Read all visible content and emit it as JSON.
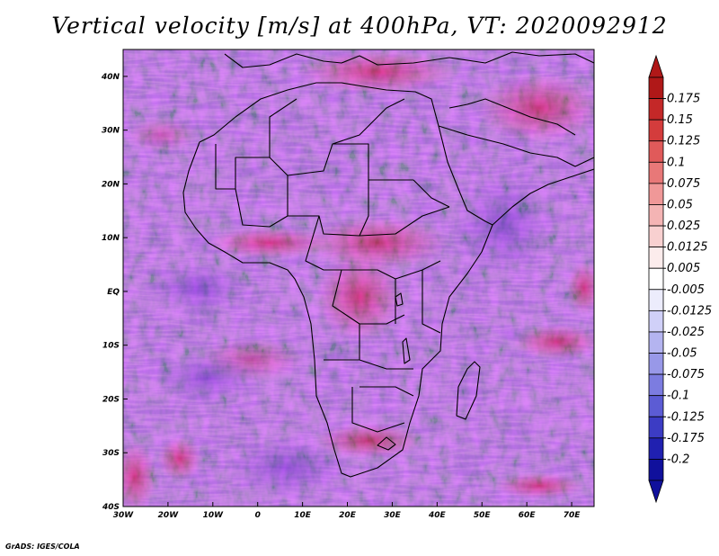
{
  "title": "Vertical velocity [m/s] at 400hPa, VT: 2020092912",
  "credit": "GrADS: IGES/COLA",
  "map": {
    "lon_range": [
      -30,
      75
    ],
    "lat_range": [
      -40,
      45
    ],
    "lon_ticks": [
      "30W",
      "20W",
      "10W",
      "0",
      "10E",
      "20E",
      "30E",
      "40E",
      "50E",
      "60E",
      "70E"
    ],
    "lon_values": [
      -30,
      -20,
      -10,
      0,
      10,
      20,
      30,
      40,
      50,
      60,
      70
    ],
    "lat_ticks": [
      "40N",
      "30N",
      "20N",
      "10N",
      "EQ",
      "10S",
      "20S",
      "30S",
      "40S"
    ],
    "lat_values": [
      40,
      30,
      20,
      10,
      0,
      -10,
      -20,
      -30,
      -40
    ]
  },
  "colorbar": {
    "labels": [
      "0.175",
      "0.15",
      "0.125",
      "0.1",
      "0.075",
      "0.05",
      "0.025",
      "0.0125",
      "0.005",
      "-0.005",
      "-0.0125",
      "-0.025",
      "-0.05",
      "-0.075",
      "-0.1",
      "-0.125",
      "-0.175",
      "-0.2"
    ],
    "colors": [
      "#b01818",
      "#c42828",
      "#d43c3c",
      "#e05a5a",
      "#e87878",
      "#f09898",
      "#f4b4b4",
      "#f8d0d0",
      "#fcecec",
      "#ffffff",
      "#ececfc",
      "#d0d0f8",
      "#b4b4f0",
      "#9898e8",
      "#7c7ce0",
      "#5c5cd4",
      "#3c3cc4",
      "#2020b0",
      "#10109c"
    ]
  },
  "chart_data": {
    "type": "heatmap",
    "title": "Vertical velocity [m/s] at 400hPa, VT: 2020092912",
    "variable": "Vertical velocity",
    "units": "m/s",
    "level": "400hPa",
    "valid_time": "2020092912",
    "x_range": [
      -30,
      75
    ],
    "y_range": [
      -40,
      45
    ],
    "contour_levels": [
      -0.2,
      -0.175,
      -0.125,
      -0.1,
      -0.075,
      -0.05,
      -0.025,
      -0.0125,
      -0.005,
      0.005,
      0.0125,
      0.025,
      0.05,
      0.075,
      0.1,
      0.125,
      0.15,
      0.175
    ]
  }
}
